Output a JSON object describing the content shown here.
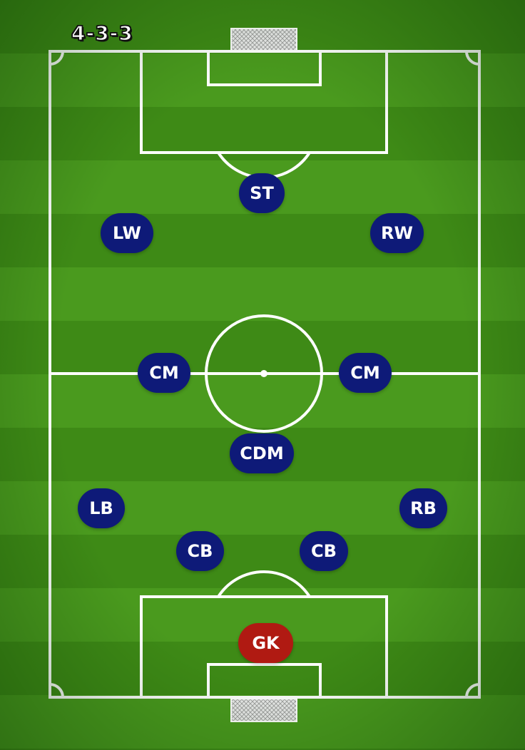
{
  "formation": "4-3-3",
  "colors": {
    "outfield_player": "#0e1a78",
    "goalkeeper": "#b01a12",
    "lines": "#ffffff",
    "net": "#d8d8d8"
  },
  "players": [
    {
      "id": "st",
      "label": "ST",
      "role": "outfield"
    },
    {
      "id": "lw",
      "label": "LW",
      "role": "outfield"
    },
    {
      "id": "rw",
      "label": "RW",
      "role": "outfield"
    },
    {
      "id": "cm-left",
      "label": "CM",
      "role": "outfield"
    },
    {
      "id": "cm-right",
      "label": "CM",
      "role": "outfield"
    },
    {
      "id": "cdm",
      "label": "CDM",
      "role": "outfield"
    },
    {
      "id": "lb",
      "label": "LB",
      "role": "outfield"
    },
    {
      "id": "rb",
      "label": "RB",
      "role": "outfield"
    },
    {
      "id": "cb-left",
      "label": "CB",
      "role": "outfield"
    },
    {
      "id": "cb-right",
      "label": "CB",
      "role": "outfield"
    },
    {
      "id": "gk",
      "label": "GK",
      "role": "goalkeeper"
    }
  ]
}
